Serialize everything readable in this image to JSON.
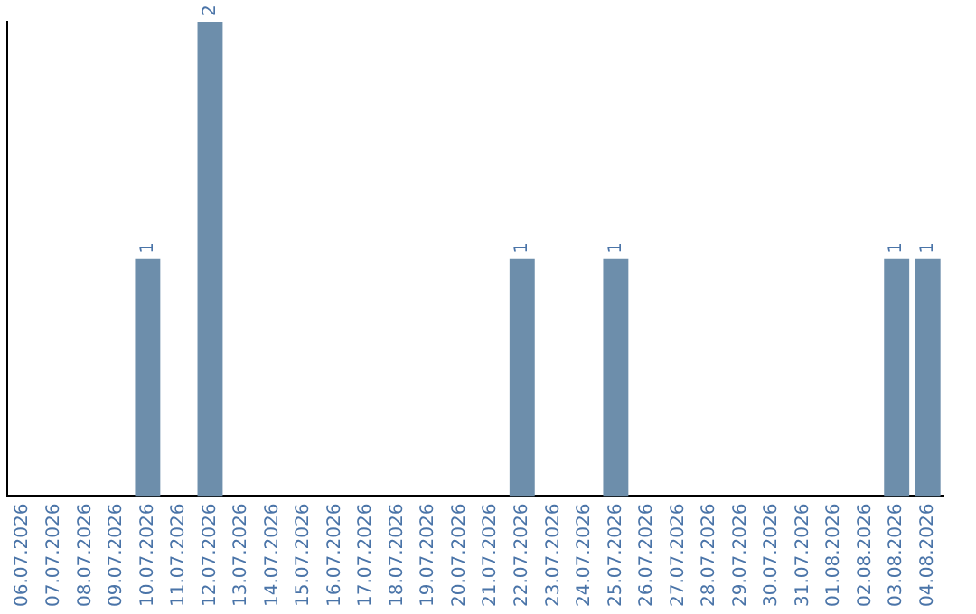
{
  "chart_data": {
    "type": "bar",
    "categories": [
      "06.07.2026",
      "07.07.2026",
      "08.07.2026",
      "09.07.2026",
      "10.07.2026",
      "11.07.2026",
      "12.07.2026",
      "13.07.2026",
      "14.07.2026",
      "15.07.2026",
      "16.07.2026",
      "17.07.2026",
      "18.07.2026",
      "19.07.2026",
      "20.07.2026",
      "21.07.2026",
      "22.07.2026",
      "23.07.2026",
      "24.07.2026",
      "25.07.2026",
      "26.07.2026",
      "27.07.2026",
      "28.07.2026",
      "29.07.2026",
      "30.07.2026",
      "31.07.2026",
      "01.08.2026",
      "02.08.2026",
      "03.08.2026",
      "04.08.2026"
    ],
    "values": [
      0,
      0,
      0,
      0,
      1,
      0,
      2,
      0,
      0,
      0,
      0,
      0,
      0,
      0,
      0,
      0,
      1,
      0,
      0,
      1,
      0,
      0,
      0,
      0,
      0,
      0,
      0,
      0,
      1,
      1
    ],
    "value_labels": [
      null,
      null,
      null,
      null,
      "1",
      null,
      "2",
      null,
      null,
      null,
      null,
      null,
      null,
      null,
      null,
      null,
      "1",
      null,
      null,
      "1",
      null,
      null,
      null,
      null,
      null,
      null,
      null,
      null,
      "1",
      "1"
    ],
    "color": "#6d8eab",
    "tick_labels": "x",
    "grid": false,
    "legend": false
  }
}
